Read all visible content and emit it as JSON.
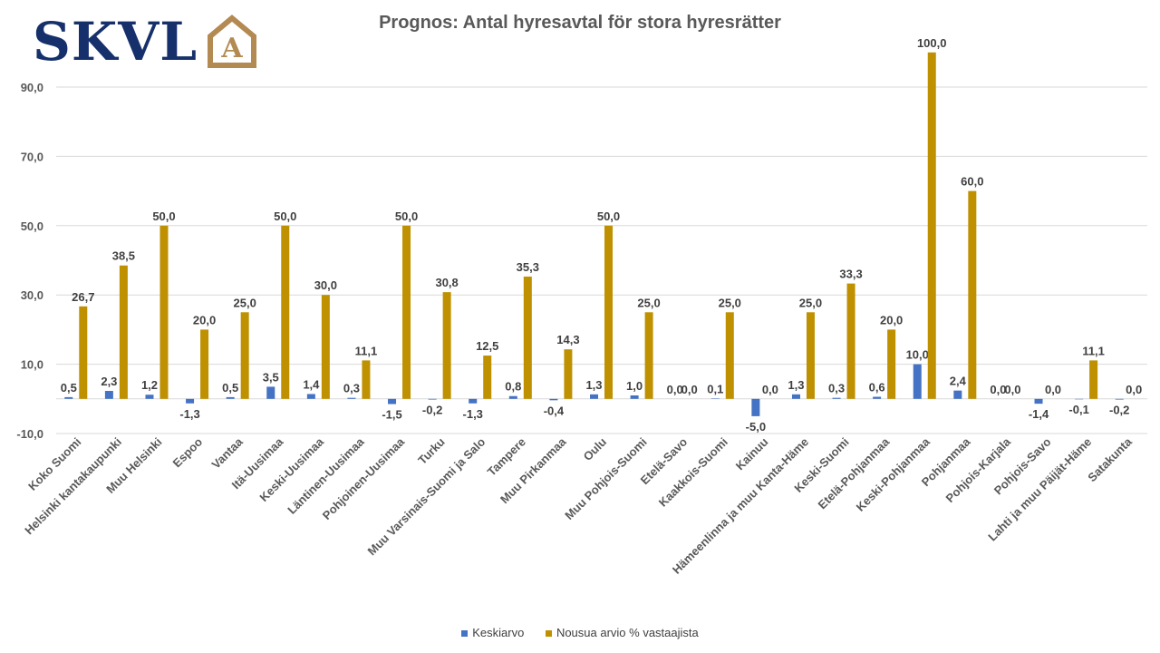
{
  "logo": {
    "text": "SKVL",
    "mark_letter": "A",
    "text_color": "#16306b",
    "mark_color": "#b38a51"
  },
  "chart_data": {
    "type": "bar",
    "title": "Prognos: Antal hyresavtal för stora hyresrätter",
    "xlabel": "",
    "ylabel": "",
    "ylim": [
      -10,
      100
    ],
    "yticks": [
      90,
      70,
      50,
      30,
      10,
      -10
    ],
    "ytick_labels": [
      "90,0",
      "70,0",
      "50,0",
      "30,0",
      "10,0",
      "-10,0"
    ],
    "grid": true,
    "legend_position": "bottom",
    "categories": [
      "Koko Suomi",
      "Helsinki kantakaupunki",
      "Muu Helsinki",
      "Espoo",
      "Vantaa",
      "Itä-Uusimaa",
      "Keski-Uusimaa",
      "Läntinen-Uusimaa",
      "Pohjoinen-Uusimaa",
      "Turku",
      "Muu Varsinais-Suomi ja Salo",
      "Tampere",
      "Muu Pirkanmaa",
      "Oulu",
      "Muu Pohjois-Suomi",
      "Etelä-Savo",
      "Kaakkois-Suomi",
      "Kainuu",
      "Hämeenlinna ja muu Kanta-Häme",
      "Keski-Suomi",
      "Etelä-Pohjanmaa",
      "Keski-Pohjanmaa",
      "Pohjanmaa",
      "Pohjois-Karjala",
      "Pohjois-Savo",
      "Lahti ja muu Päijät-Häme",
      "Satakunta"
    ],
    "series": [
      {
        "name": "Keskiarvo",
        "color": "#4472c4",
        "values": [
          0.5,
          2.3,
          1.2,
          -1.3,
          0.5,
          3.5,
          1.4,
          0.3,
          -1.5,
          -0.2,
          -1.3,
          0.8,
          -0.4,
          1.3,
          1.0,
          0.0,
          0.1,
          -5.0,
          1.3,
          0.3,
          0.6,
          10.0,
          2.4,
          0.0,
          -1.4,
          -0.1,
          -0.2
        ],
        "labels": [
          "0,5",
          "2,3",
          "1,2",
          "-1,3",
          "0,5",
          "3,5",
          "1,4",
          "0,3",
          "-1,5",
          "-0,2",
          "-1,3",
          "0,8",
          "-0,4",
          "1,3",
          "1,0",
          "0,0",
          "0,1",
          "-5,0",
          "1,3",
          "0,3",
          "0,6",
          "10,0",
          "2,4",
          "0,0",
          "-1,4",
          "-0,1",
          "-0,2"
        ]
      },
      {
        "name": "Nousua arvio % vastaajista",
        "color": "#bf9000",
        "values": [
          26.7,
          38.5,
          50.0,
          20.0,
          25.0,
          50.0,
          30.0,
          11.1,
          50.0,
          30.8,
          12.5,
          35.3,
          14.3,
          50.0,
          25.0,
          0.0,
          25.0,
          0.0,
          25.0,
          33.3,
          20.0,
          100.0,
          60.0,
          0.0,
          0.0,
          11.1,
          0.0
        ],
        "labels": [
          "26,7",
          "38,5",
          "50,0",
          "20,0",
          "25,0",
          "50,0",
          "30,0",
          "11,1",
          "50,0",
          "30,8",
          "12,5",
          "35,3",
          "14,3",
          "50,0",
          "25,0",
          "0,0",
          "25,0",
          "0,0",
          "25,0",
          "33,3",
          "20,0",
          "100,0",
          "60,0",
          "0,0",
          "0,0",
          "11,1",
          "0,0"
        ]
      }
    ]
  }
}
